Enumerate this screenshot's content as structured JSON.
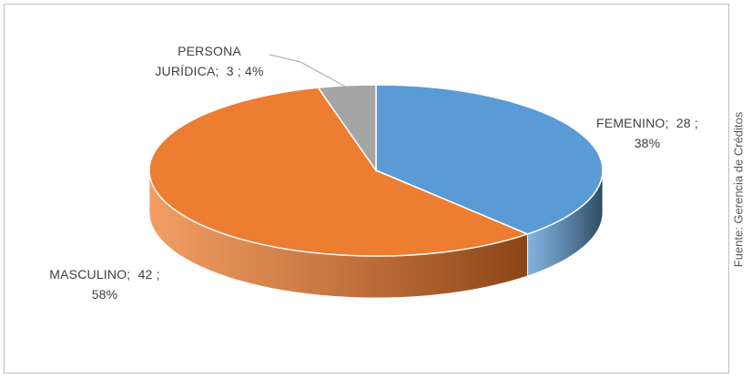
{
  "chart_data": {
    "type": "pie",
    "style": "3d",
    "title": "",
    "categories": [
      "FEMENINO",
      "MASCULINO",
      "PERSONA JURÍDICA"
    ],
    "values": [
      28,
      42,
      3
    ],
    "percentages": [
      "38%",
      "58%",
      "4%"
    ],
    "colors": [
      "#5b9bd5",
      "#ed7d31",
      "#a5a5a5"
    ],
    "side_colors": [
      "#2e4a63",
      "#8a4416",
      "#7f7f7f"
    ],
    "labels": [
      {
        "line1": "FEMENINO;  28 ;",
        "line2": "38%"
      },
      {
        "line1": "MASCULINO;  42 ;",
        "line2": "58%"
      },
      {
        "line1": "PERSONA",
        "line2": "JURÍDICA;  3 ; 4%"
      }
    ]
  },
  "source_note": "Fuente: Gerencia de Créditos"
}
